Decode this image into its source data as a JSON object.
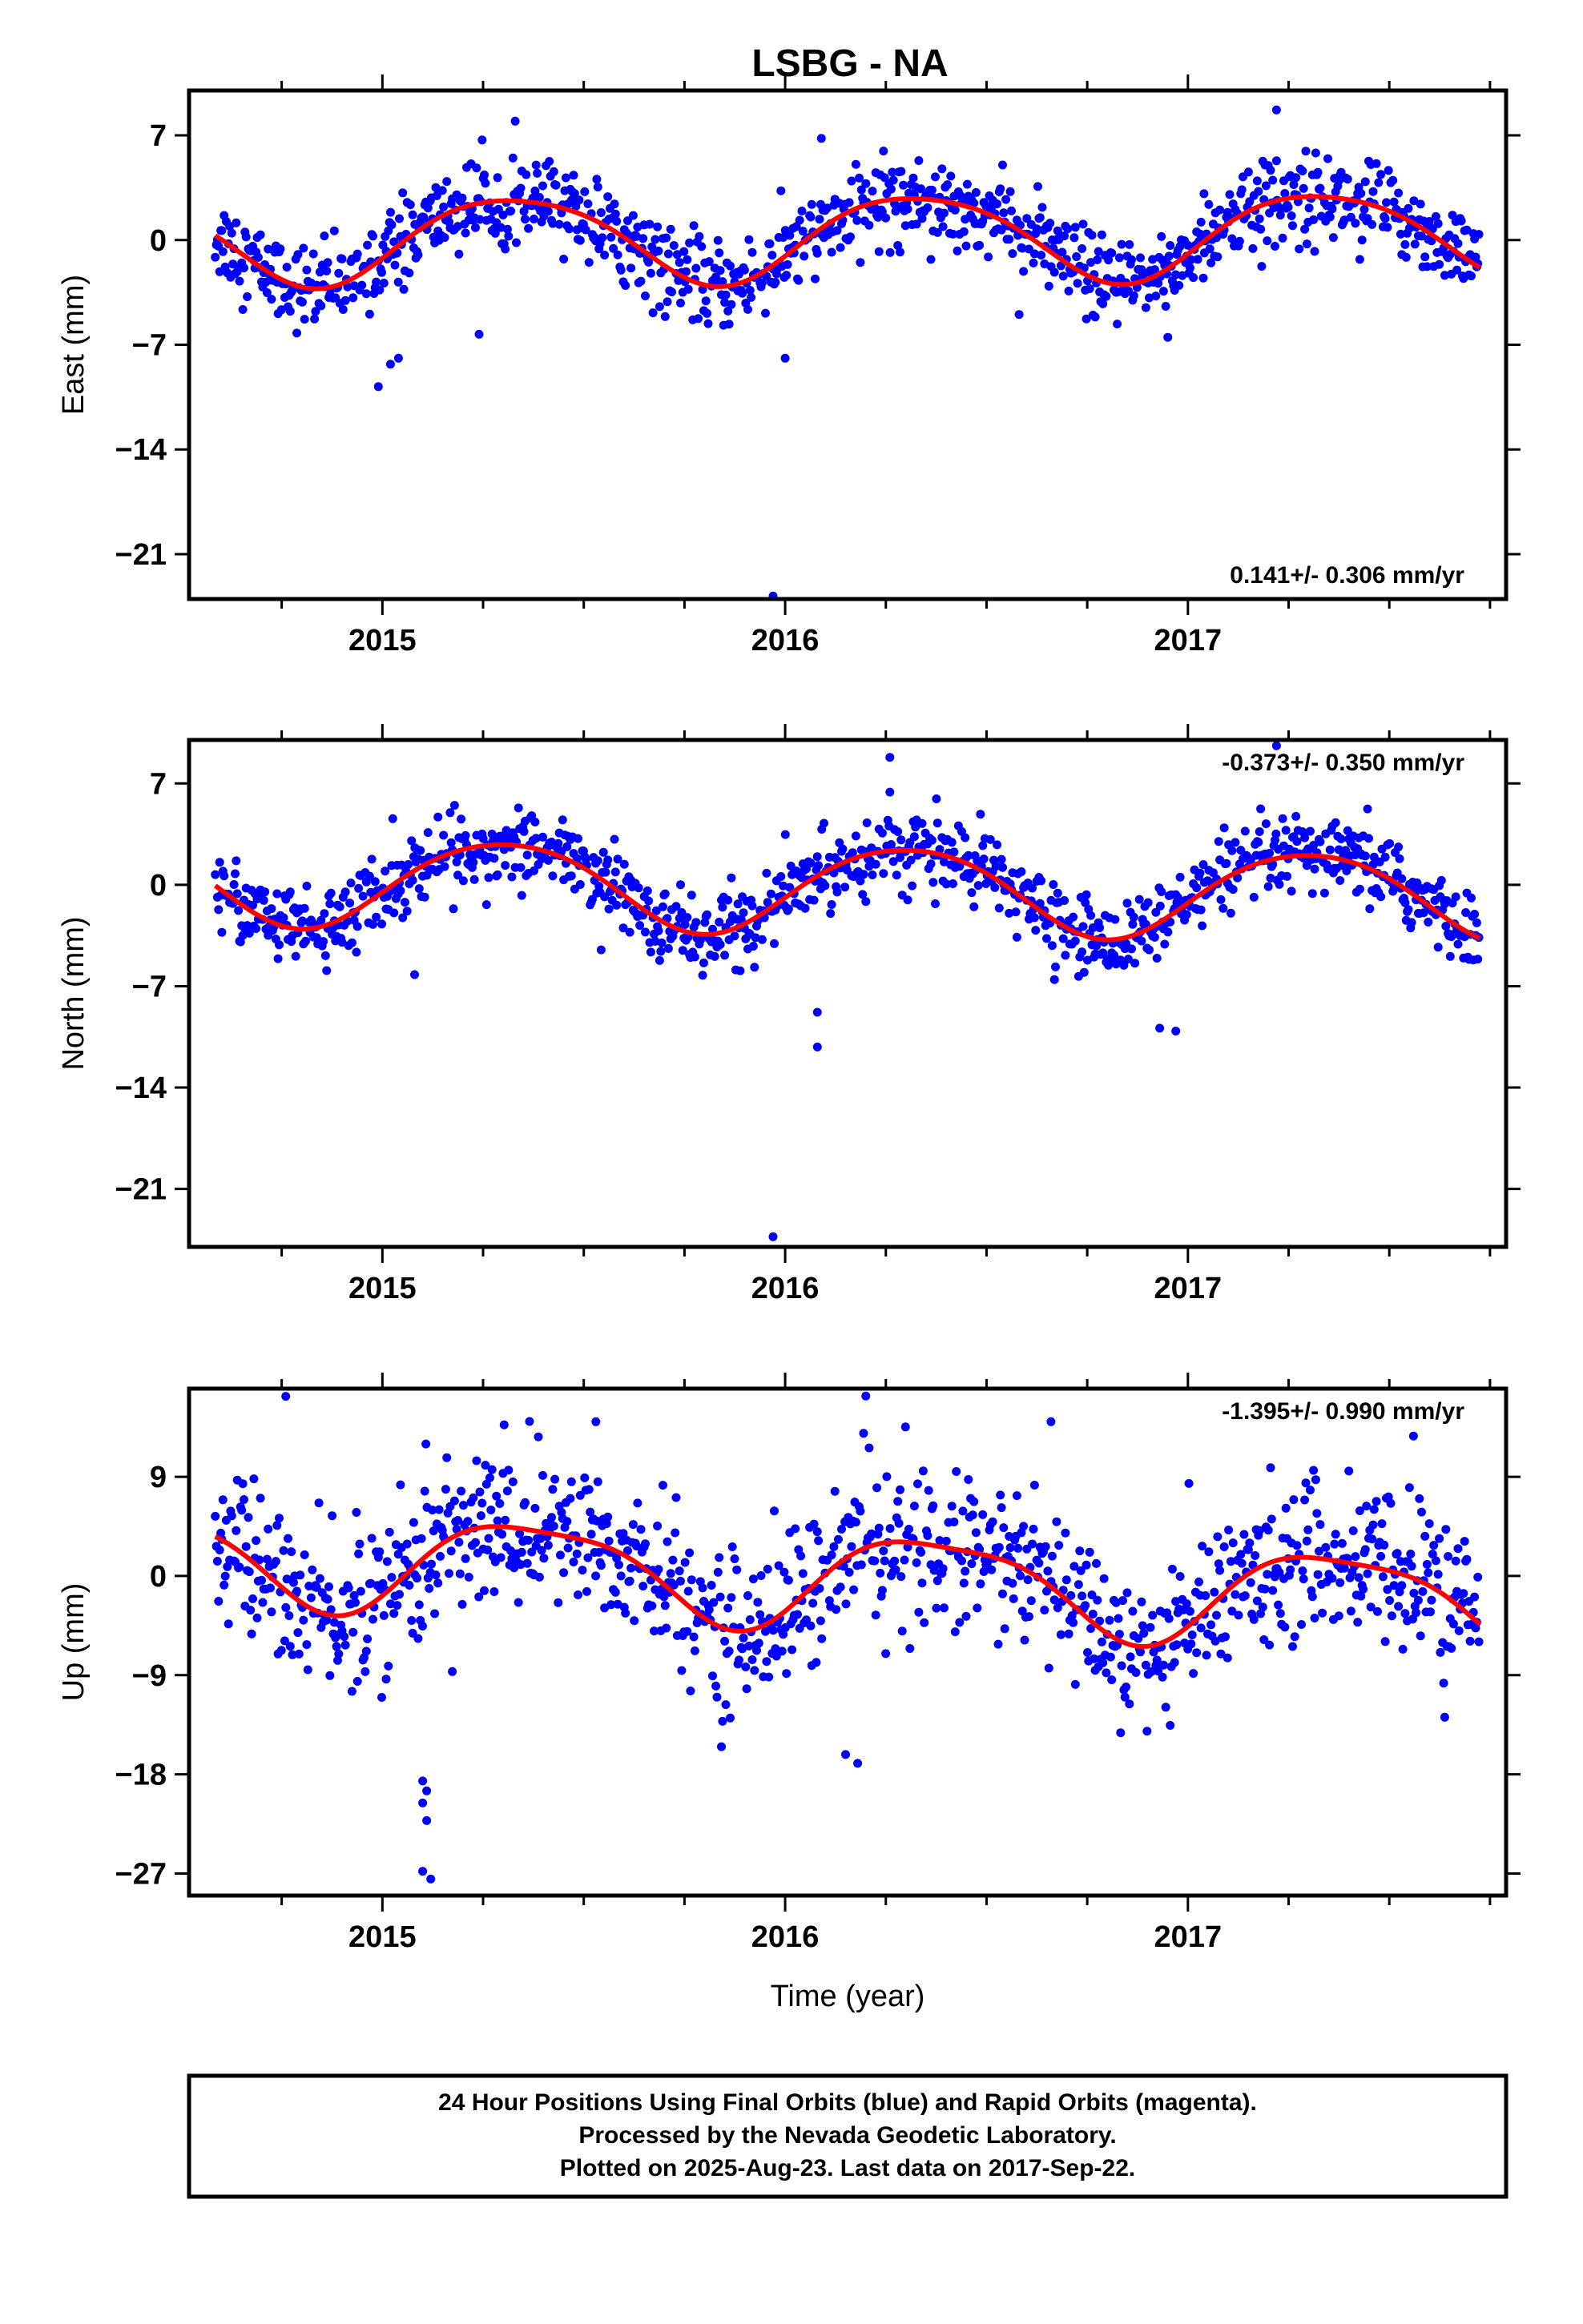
{
  "title": "LSBG - NA",
  "colors": {
    "final_orbits": "#0000ff",
    "rapid_orbits": "#ff00ff",
    "model": "#ff0000",
    "frame": "#000000"
  },
  "chart_data": [
    {
      "type": "scatter",
      "panel": "east",
      "ylabel": "East (mm)",
      "xlabel": "",
      "ylim": [
        -24,
        10
      ],
      "xlim": [
        2014.52,
        2017.79
      ],
      "yticks": [
        -21,
        -14,
        -7,
        0,
        7
      ],
      "xticks": [
        2015,
        2016,
        2017
      ],
      "rate_label": "0.141+/- 0.306 mm/yr",
      "rate_position": "bottom-right",
      "model": {
        "offset": 0.2,
        "trend": 0.141,
        "annual_amp": 2.9,
        "annual_phase_year": 0.33,
        "semiannual_amp": 0.4,
        "semiannual_phase_year": 0.1
      },
      "noise_sd": 1.4,
      "outliers": [
        [
          2014.99,
          -9.8
        ],
        [
          2015.02,
          -8.3
        ],
        [
          2015.04,
          -7.9
        ],
        [
          2015.24,
          -6.3
        ],
        [
          2016.0,
          -7.9
        ],
        [
          2016.09,
          6.8
        ],
        [
          2015.97,
          -23.8
        ],
        [
          2017.22,
          8.7
        ],
        [
          2017.22,
          5.3
        ],
        [
          2016.95,
          -6.5
        ],
        [
          2017.04,
          3.1
        ]
      ]
    },
    {
      "type": "scatter",
      "panel": "north",
      "ylabel": "North (mm)",
      "xlabel": "",
      "ylim": [
        -25,
        10
      ],
      "xlim": [
        2014.52,
        2017.79
      ],
      "yticks": [
        -21,
        -14,
        -7,
        0,
        7
      ],
      "xticks": [
        2015,
        2016,
        2017
      ],
      "rate_label": "-0.373+/- 0.350 mm/yr",
      "rate_position": "top-right",
      "model": {
        "offset": -0.2,
        "trend": -0.373,
        "annual_amp": 3.0,
        "annual_phase_year": 0.3,
        "semiannual_amp": 0.3,
        "semiannual_phase_year": 0.05
      },
      "noise_sd": 1.3,
      "outliers": [
        [
          2016.26,
          8.8
        ],
        [
          2016.26,
          6.4
        ],
        [
          2016.08,
          -8.8
        ],
        [
          2016.08,
          -11.2
        ],
        [
          2015.97,
          -24.3
        ],
        [
          2015.08,
          -6.2
        ],
        [
          2016.93,
          -9.9
        ],
        [
          2016.97,
          -10.1
        ],
        [
          2017.22,
          9.6
        ]
      ]
    },
    {
      "type": "scatter",
      "panel": "up",
      "ylabel": "Up (mm)",
      "xlabel": "Time (year)",
      "ylim": [
        -29,
        17
      ],
      "xlim": [
        2014.52,
        2017.79
      ],
      "yticks": [
        -27,
        -18,
        -9,
        0,
        9
      ],
      "xticks": [
        2015,
        2016,
        2017
      ],
      "rate_label": "-1.395+/- 0.990 mm/yr",
      "rate_position": "top-right",
      "model": {
        "offset": 0.0,
        "trend": -1.395,
        "annual_amp": 4.2,
        "annual_phase_year": 0.37,
        "semiannual_amp": 1.0,
        "semiannual_phase_year": 0.15
      },
      "noise_sd": 3.6,
      "outliers": [
        [
          2015.1,
          -18.6
        ],
        [
          2015.11,
          -19.5
        ],
        [
          2015.1,
          -20.6
        ],
        [
          2015.11,
          -22.2
        ],
        [
          2015.1,
          -26.8
        ],
        [
          2015.12,
          -27.5
        ],
        [
          2014.76,
          16.3
        ],
        [
          2016.15,
          -16.2
        ],
        [
          2016.18,
          -17.0
        ],
        [
          2017.56,
          12.7
        ],
        [
          2016.66,
          14.0
        ],
        [
          2015.53,
          14.0
        ]
      ]
    }
  ],
  "footer": {
    "line1": "24 Hour Positions Using Final Orbits (blue) and Rapid Orbits (magenta).",
    "line2": "Processed by the Nevada Geodetic Laboratory.",
    "line3": "Plotted on 2025-Aug-23. Last data on 2017-Sep-22."
  }
}
